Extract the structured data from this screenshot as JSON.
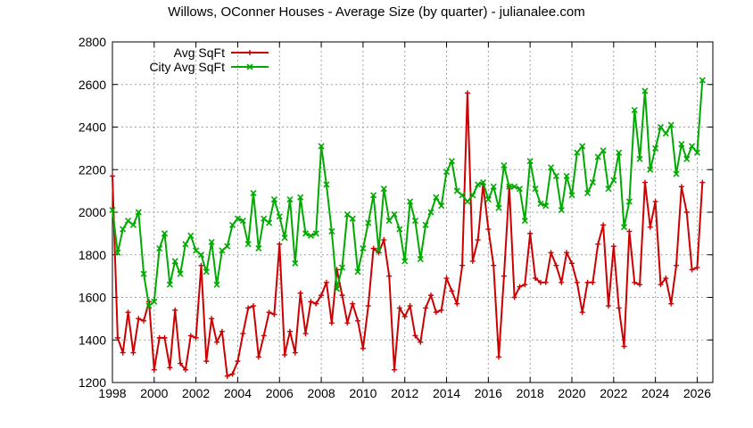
{
  "chart_data": {
    "type": "line",
    "title": "Willows, OConner Houses - Average Size (by quarter) - julianalee.com",
    "xlabel": "",
    "ylabel": "",
    "xlim": [
      1998,
      2026.75
    ],
    "ylim": [
      1200,
      2800
    ],
    "x_ticks": [
      "1998",
      "2000",
      "2002",
      "2004",
      "2006",
      "2008",
      "2010",
      "2012",
      "2014",
      "2016",
      "2018",
      "2020",
      "2022",
      "2024",
      "2026"
    ],
    "y_ticks": [
      "1200",
      "1400",
      "1600",
      "1800",
      "2000",
      "2200",
      "2400",
      "2600",
      "2800"
    ],
    "grid": true,
    "legend_position": "top-left",
    "x": [
      1998.0,
      1998.25,
      1998.5,
      1998.75,
      1999.0,
      1999.25,
      1999.5,
      1999.75,
      2000.0,
      2000.25,
      2000.5,
      2000.75,
      2001.0,
      2001.25,
      2001.5,
      2001.75,
      2002.0,
      2002.25,
      2002.5,
      2002.75,
      2003.0,
      2003.25,
      2003.5,
      2003.75,
      2004.0,
      2004.25,
      2004.5,
      2004.75,
      2005.0,
      2005.25,
      2005.5,
      2005.75,
      2006.0,
      2006.25,
      2006.5,
      2006.75,
      2007.0,
      2007.25,
      2007.5,
      2007.75,
      2008.0,
      2008.25,
      2008.5,
      2008.75,
      2009.0,
      2009.25,
      2009.5,
      2009.75,
      2010.0,
      2010.25,
      2010.5,
      2010.75,
      2011.0,
      2011.25,
      2011.5,
      2011.75,
      2012.0,
      2012.25,
      2012.5,
      2012.75,
      2013.0,
      2013.25,
      2013.5,
      2013.75,
      2014.0,
      2014.25,
      2014.5,
      2014.75,
      2015.0,
      2015.25,
      2015.5,
      2015.75,
      2016.0,
      2016.25,
      2016.5,
      2016.75,
      2017.0,
      2017.25,
      2017.5,
      2017.75,
      2018.0,
      2018.25,
      2018.5,
      2018.75,
      2019.0,
      2019.25,
      2019.5,
      2019.75,
      2020.0,
      2020.25,
      2020.5,
      2020.75,
      2021.0,
      2021.25,
      2021.5,
      2021.75,
      2022.0,
      2022.25,
      2022.5,
      2022.75,
      2023.0,
      2023.25,
      2023.5,
      2023.75,
      2024.0,
      2024.25,
      2024.5,
      2024.75,
      2025.0,
      2025.25,
      2025.5,
      2025.75,
      2026.0,
      2026.25
    ],
    "series": [
      {
        "name": "Avg SqFt",
        "color": "#cc0000",
        "marker": "plus",
        "values": [
          2170,
          1410,
          1340,
          1530,
          1340,
          1500,
          1490,
          1580,
          1260,
          1410,
          1410,
          1270,
          1540,
          1290,
          1260,
          1420,
          1410,
          1750,
          1300,
          1500,
          1390,
          1440,
          1230,
          1240,
          1300,
          1430,
          1550,
          1560,
          1320,
          1420,
          1530,
          1520,
          1850,
          1330,
          1440,
          1340,
          1620,
          1430,
          1580,
          1570,
          1610,
          1670,
          1480,
          1730,
          1610,
          1480,
          1570,
          1490,
          1360,
          1560,
          1830,
          1810,
          1870,
          1700,
          1260,
          1550,
          1510,
          1560,
          1420,
          1390,
          1550,
          1610,
          1530,
          1540,
          1690,
          1630,
          1570,
          1750,
          2560,
          1770,
          1870,
          2130,
          1920,
          1750,
          1320,
          1700,
          2120,
          1600,
          1650,
          1660,
          1900,
          1690,
          1670,
          1670,
          1810,
          1750,
          1670,
          1810,
          1760,
          1670,
          1530,
          1670,
          1670,
          1850,
          1940,
          1560,
          1840,
          1550,
          1370,
          1910,
          1670,
          1660,
          2140,
          1930,
          2050,
          1660,
          1690,
          1570,
          1750,
          2120,
          2000,
          1730,
          1740,
          2140
        ]
      },
      {
        "name": "City Avg SqFt",
        "color": "#00aa00",
        "marker": "x",
        "values": [
          2010,
          1810,
          1920,
          1960,
          1940,
          2000,
          1710,
          1560,
          1580,
          1830,
          1900,
          1660,
          1770,
          1710,
          1850,
          1890,
          1820,
          1800,
          1720,
          1860,
          1660,
          1820,
          1840,
          1940,
          1970,
          1960,
          1850,
          2090,
          1830,
          1970,
          1950,
          2060,
          1980,
          1880,
          2060,
          1760,
          2070,
          1900,
          1890,
          1900,
          2310,
          2130,
          1910,
          1640,
          1740,
          1990,
          1970,
          1720,
          1830,
          1950,
          2080,
          1820,
          2110,
          1960,
          1990,
          1920,
          1770,
          2050,
          1960,
          1780,
          1940,
          2000,
          2070,
          2030,
          2190,
          2240,
          2100,
          2080,
          2050,
          2080,
          2130,
          2140,
          2060,
          2120,
          2020,
          2220,
          2120,
          2120,
          2110,
          1960,
          2240,
          2110,
          2040,
          2030,
          2210,
          2170,
          2010,
          2170,
          2080,
          2280,
          2310,
          2090,
          2140,
          2260,
          2290,
          2110,
          2150,
          2280,
          1930,
          2050,
          2480,
          2250,
          2570,
          2200,
          2300,
          2400,
          2370,
          2410,
          2180,
          2320,
          2250,
          2310,
          2280,
          2620
        ]
      }
    ]
  }
}
